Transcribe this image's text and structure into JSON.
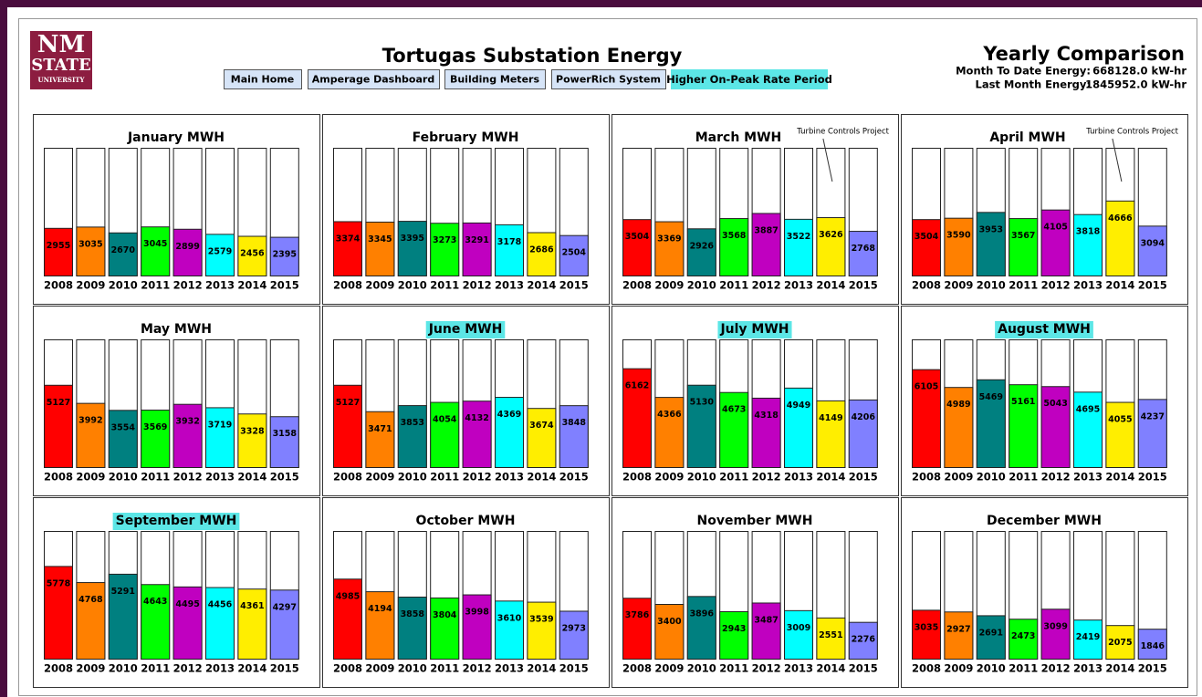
{
  "header": {
    "logo": [
      "NM",
      "STATE",
      "UNIVERSITY"
    ],
    "title": "Tortugas Substation Energy",
    "buttons": [
      "Main Home",
      "Amperage Dashboard",
      "Building Meters",
      "PowerRich System"
    ],
    "notice": "Higher On-Peak Rate Period",
    "right_title": "Yearly Comparison",
    "stats": [
      {
        "label": "Month To Date Energy:",
        "value": "668128.0 kW-hr"
      },
      {
        "label": "Last Month Energy:",
        "value": "1845952.0 kW-hr"
      }
    ]
  },
  "chart_data": [
    {
      "type": "bar",
      "title": "January MWH",
      "categories": [
        "2008",
        "2009",
        "2010",
        "2011",
        "2012",
        "2013",
        "2014",
        "2015"
      ],
      "values": [
        2955,
        3035,
        2670,
        3045,
        2899,
        2579,
        2456,
        2395
      ],
      "colors": [
        "#ff0000",
        "#ff8000",
        "#008080",
        "#00ff00",
        "#c000c0",
        "#00ffff",
        "#ffee00",
        "#8080ff"
      ],
      "ylim": [
        0,
        8000
      ],
      "highlight": false
    },
    {
      "type": "bar",
      "title": "February MWH",
      "categories": [
        "2008",
        "2009",
        "2010",
        "2011",
        "2012",
        "2013",
        "2014",
        "2015"
      ],
      "values": [
        3374,
        3345,
        3395,
        3273,
        3291,
        3178,
        2686,
        2504
      ],
      "colors": [
        "#ff0000",
        "#ff8000",
        "#008080",
        "#00ff00",
        "#c000c0",
        "#00ffff",
        "#ffee00",
        "#8080ff"
      ],
      "ylim": [
        0,
        8000
      ],
      "highlight": false
    },
    {
      "type": "bar",
      "title": "March MWH",
      "categories": [
        "2008",
        "2009",
        "2010",
        "2011",
        "2012",
        "2013",
        "2014",
        "2015"
      ],
      "values": [
        3504,
        3369,
        2926,
        3568,
        3887,
        3522,
        3626,
        2768
      ],
      "colors": [
        "#ff0000",
        "#ff8000",
        "#008080",
        "#00ff00",
        "#c000c0",
        "#00ffff",
        "#ffee00",
        "#8080ff"
      ],
      "ylim": [
        0,
        8000
      ],
      "highlight": false,
      "annotation": "Turbine Controls Project"
    },
    {
      "type": "bar",
      "title": "April MWH",
      "categories": [
        "2008",
        "2009",
        "2010",
        "2011",
        "2012",
        "2013",
        "2014",
        "2015"
      ],
      "values": [
        3504,
        3590,
        3953,
        3567,
        4105,
        3818,
        4666,
        3094
      ],
      "colors": [
        "#ff0000",
        "#ff8000",
        "#008080",
        "#00ff00",
        "#c000c0",
        "#00ffff",
        "#ffee00",
        "#8080ff"
      ],
      "ylim": [
        0,
        8000
      ],
      "highlight": false,
      "annotation": "Turbine Controls Project"
    },
    {
      "type": "bar",
      "title": "May MWH",
      "categories": [
        "2008",
        "2009",
        "2010",
        "2011",
        "2012",
        "2013",
        "2014",
        "2015"
      ],
      "values": [
        5127,
        3992,
        3554,
        3569,
        3932,
        3719,
        3328,
        3158
      ],
      "colors": [
        "#ff0000",
        "#ff8000",
        "#008080",
        "#00ff00",
        "#c000c0",
        "#00ffff",
        "#ffee00",
        "#8080ff"
      ],
      "ylim": [
        0,
        8000
      ],
      "highlight": false
    },
    {
      "type": "bar",
      "title": "June MWH",
      "categories": [
        "2008",
        "2009",
        "2010",
        "2011",
        "2012",
        "2013",
        "2014",
        "2015"
      ],
      "values": [
        5127,
        3471,
        3853,
        4054,
        4132,
        4369,
        3674,
        3848
      ],
      "colors": [
        "#ff0000",
        "#ff8000",
        "#008080",
        "#00ff00",
        "#c000c0",
        "#00ffff",
        "#ffee00",
        "#8080ff"
      ],
      "ylim": [
        0,
        8000
      ],
      "highlight": true
    },
    {
      "type": "bar",
      "title": "July MWH",
      "categories": [
        "2008",
        "2009",
        "2010",
        "2011",
        "2012",
        "2013",
        "2014",
        "2015"
      ],
      "values": [
        6162,
        4366,
        5130,
        4673,
        4318,
        4949,
        4149,
        4206
      ],
      "colors": [
        "#ff0000",
        "#ff8000",
        "#008080",
        "#00ff00",
        "#c000c0",
        "#00ffff",
        "#ffee00",
        "#8080ff"
      ],
      "ylim": [
        0,
        8000
      ],
      "highlight": true
    },
    {
      "type": "bar",
      "title": "August MWH",
      "categories": [
        "2008",
        "2009",
        "2010",
        "2011",
        "2012",
        "2013",
        "2014",
        "2015"
      ],
      "values": [
        6105,
        4989,
        5469,
        5161,
        5043,
        4695,
        4055,
        4237
      ],
      "colors": [
        "#ff0000",
        "#ff8000",
        "#008080",
        "#00ff00",
        "#c000c0",
        "#00ffff",
        "#ffee00",
        "#8080ff"
      ],
      "ylim": [
        0,
        8000
      ],
      "highlight": true
    },
    {
      "type": "bar",
      "title": "September MWH",
      "categories": [
        "2008",
        "2009",
        "2010",
        "2011",
        "2012",
        "2013",
        "2014",
        "2015"
      ],
      "values": [
        5778,
        4768,
        5291,
        4643,
        4495,
        4456,
        4361,
        4297
      ],
      "colors": [
        "#ff0000",
        "#ff8000",
        "#008080",
        "#00ff00",
        "#c000c0",
        "#00ffff",
        "#ffee00",
        "#8080ff"
      ],
      "ylim": [
        0,
        8000
      ],
      "highlight": true
    },
    {
      "type": "bar",
      "title": "October MWH",
      "categories": [
        "2008",
        "2009",
        "2010",
        "2011",
        "2012",
        "2013",
        "2014",
        "2015"
      ],
      "values": [
        4985,
        4194,
        3858,
        3804,
        3998,
        3610,
        3539,
        2973
      ],
      "colors": [
        "#ff0000",
        "#ff8000",
        "#008080",
        "#00ff00",
        "#c000c0",
        "#00ffff",
        "#ffee00",
        "#8080ff"
      ],
      "ylim": [
        0,
        8000
      ],
      "highlight": false
    },
    {
      "type": "bar",
      "title": "November MWH",
      "categories": [
        "2008",
        "2009",
        "2010",
        "2011",
        "2012",
        "2013",
        "2014",
        "2015"
      ],
      "values": [
        3786,
        3400,
        3896,
        2943,
        3487,
        3009,
        2551,
        2276
      ],
      "colors": [
        "#ff0000",
        "#ff8000",
        "#008080",
        "#00ff00",
        "#c000c0",
        "#00ffff",
        "#ffee00",
        "#8080ff"
      ],
      "ylim": [
        0,
        8000
      ],
      "highlight": false
    },
    {
      "type": "bar",
      "title": "December MWH",
      "categories": [
        "2008",
        "2009",
        "2010",
        "2011",
        "2012",
        "2013",
        "2014",
        "2015"
      ],
      "values": [
        3035,
        2927,
        2691,
        2473,
        3099,
        2419,
        2075,
        1846
      ],
      "colors": [
        "#ff0000",
        "#ff8000",
        "#008080",
        "#00ff00",
        "#c000c0",
        "#00ffff",
        "#ffee00",
        "#8080ff"
      ],
      "ylim": [
        0,
        8000
      ],
      "highlight": false
    }
  ]
}
